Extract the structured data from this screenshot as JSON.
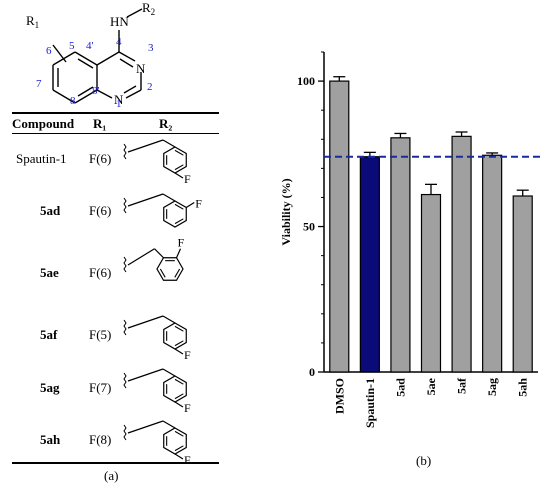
{
  "panel_a": {
    "core_labels": {
      "r1": "R",
      "r1_sub": "1",
      "hn": "HN",
      "r2": "R",
      "r2_sub": "2",
      "n3": "N",
      "n1": "N",
      "pos5": "5",
      "pos4p": "4'",
      "pos4": "4",
      "pos3": "3",
      "pos6": "6",
      "pos2": "2",
      "pos7": "7",
      "pos8": "8",
      "pos8p": "8'",
      "pos1": "1"
    },
    "headers": {
      "compound": "Compound",
      "r1": "R₁",
      "r2": "R₂"
    },
    "rows": [
      {
        "compound": "Spautin-1",
        "r1": "F(6)",
        "substituent": "para",
        "f": "F",
        "bold": false
      },
      {
        "compound": "5ad",
        "r1": "F(6)",
        "substituent": "meta",
        "f": "F",
        "bold": true
      },
      {
        "compound": "5ae",
        "r1": "F(6)",
        "substituent": "ortho",
        "f": "F",
        "bold": true
      },
      {
        "compound": "5af",
        "r1": "F(5)",
        "substituent": "para",
        "f": "F",
        "bold": true
      },
      {
        "compound": "5ag",
        "r1": "F(7)",
        "substituent": "para",
        "f": "F",
        "bold": true
      },
      {
        "compound": "5ah",
        "r1": "F(8)",
        "substituent": "para",
        "f": "F",
        "bold": true
      }
    ],
    "label": "(a)"
  },
  "panel_b": {
    "label": "(b)"
  },
  "chart_data": {
    "type": "bar",
    "categories": [
      "DMSO",
      "Spautin-1",
      "5ad",
      "5ae",
      "5af",
      "5ag",
      "5ah"
    ],
    "values": [
      100,
      74,
      80.5,
      61,
      81,
      74.5,
      60.5
    ],
    "errors": [
      1.5,
      1.5,
      1.5,
      3.5,
      1.5,
      0.8,
      2
    ],
    "colors": [
      "#a0a0a0",
      "#0a0a78",
      "#a0a0a0",
      "#a0a0a0",
      "#a0a0a0",
      "#a0a0a0",
      "#a0a0a0"
    ],
    "reference_line": 74,
    "reference_color": "#1a2a9a",
    "ylabel": "Viability (%)",
    "yticks": [
      0,
      50,
      100
    ],
    "ylim": [
      0,
      110
    ]
  }
}
